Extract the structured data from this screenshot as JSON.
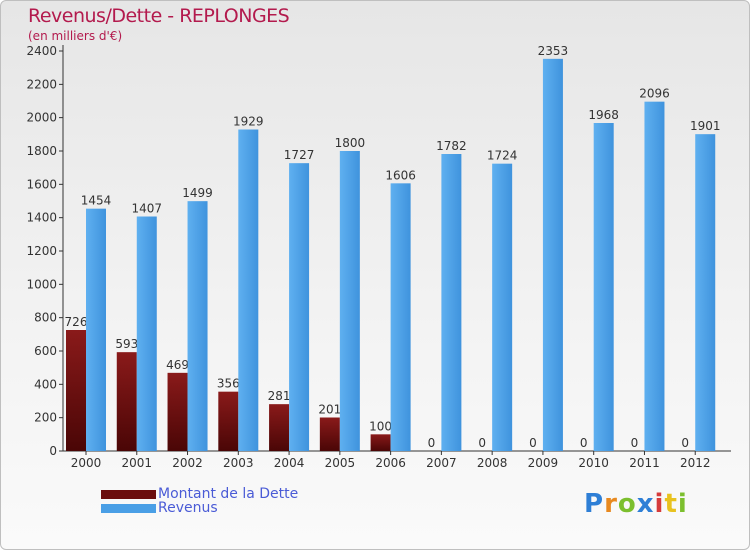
{
  "header": {
    "title": "Revenus/Dette - REPLONGES",
    "subtitle": "(en milliers d'€)"
  },
  "chart_data": {
    "type": "bar",
    "title": "Revenus/Dette - REPLONGES",
    "subtitle": "(en milliers d'€)",
    "categories": [
      "2000",
      "2001",
      "2002",
      "2003",
      "2004",
      "2005",
      "2006",
      "2007",
      "2008",
      "2009",
      "2010",
      "2011",
      "2012"
    ],
    "series": [
      {
        "name": "Montant de la Dette",
        "values": [
          726,
          593,
          469,
          356,
          281,
          201,
          100,
          0,
          0,
          0,
          0,
          0,
          0
        ],
        "color": "#6b0d0d"
      },
      {
        "name": "Revenus",
        "values": [
          1454,
          1407,
          1499,
          1929,
          1727,
          1800,
          1606,
          1782,
          1724,
          2353,
          1968,
          2096,
          1901
        ],
        "color": "#4a9fe6"
      }
    ],
    "ylim": [
      0,
      2400
    ],
    "yticks": [
      0,
      200,
      400,
      600,
      800,
      1000,
      1200,
      1400,
      1600,
      1800,
      2000,
      2200,
      2400
    ],
    "grid": false,
    "legend": "bottom-left"
  },
  "legend": {
    "items": [
      {
        "label": "Montant de la Dette",
        "color": "#6b0d0d"
      },
      {
        "label": "Revenus",
        "color": "#4a9fe6"
      }
    ]
  },
  "logo": {
    "letters": [
      "P",
      "r",
      "o",
      "x",
      "i",
      "t",
      "i"
    ],
    "colors": [
      "#2e7fd6",
      "#e8891f",
      "#7cbf2e",
      "#2e7fd6",
      "#d63b3b",
      "#e8c21f",
      "#7cbf2e"
    ]
  }
}
